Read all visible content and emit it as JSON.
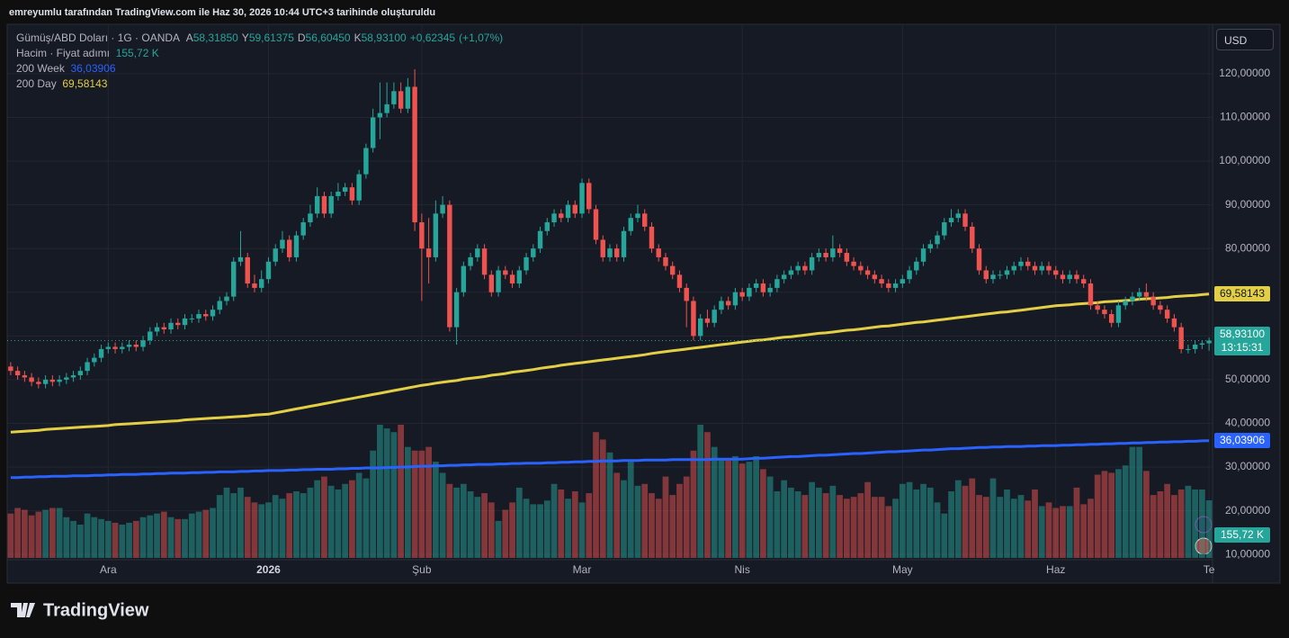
{
  "header": {
    "title": "emreyumlu tarafından TradingView.com ile Haz 30, 2026 10:44 UTC+3 tarihinde oluşturuldu"
  },
  "chart_data": {
    "type": "candlestick",
    "symbol": "Gümüş/ABD Doları · 1G · OANDA",
    "ohlc_legend": {
      "labels": [
        "A",
        "Y",
        "D",
        "K"
      ],
      "values": [
        {
          "value": 58.3185,
          "label": "58,31850"
        },
        {
          "value": 59.61375,
          "label": "59,61375"
        },
        {
          "value": 56.6045,
          "label": "56,60450"
        },
        {
          "value": 58.931,
          "label": "58,93100"
        }
      ]
    },
    "change": {
      "value": 0.62345,
      "label": "+0,62345"
    },
    "change_pct": {
      "value": 1.07,
      "label": "(+1,07%)"
    },
    "currency": "USD",
    "categories": [
      null,
      null,
      null,
      null,
      null,
      null,
      null,
      null,
      null,
      null,
      null,
      null,
      null,
      null,
      "Ara",
      null,
      null,
      null,
      null,
      null,
      null,
      null,
      null,
      null,
      null,
      null,
      null,
      null,
      null,
      null,
      null,
      null,
      null,
      null,
      null,
      null,
      null,
      "2026",
      null,
      null,
      null,
      null,
      null,
      null,
      null,
      null,
      null,
      null,
      null,
      null,
      null,
      null,
      null,
      null,
      null,
      null,
      null,
      null,
      null,
      "Şub",
      null,
      null,
      null,
      null,
      null,
      null,
      null,
      null,
      null,
      null,
      null,
      null,
      null,
      null,
      null,
      null,
      null,
      null,
      null,
      null,
      null,
      null,
      "Mar",
      null,
      null,
      null,
      null,
      null,
      null,
      null,
      null,
      null,
      null,
      null,
      null,
      null,
      null,
      null,
      null,
      null,
      null,
      null,
      null,
      null,
      null,
      "Nis",
      null,
      null,
      null,
      null,
      null,
      null,
      null,
      null,
      null,
      null,
      null,
      null,
      null,
      null,
      null,
      null,
      null,
      null,
      null,
      null,
      null,
      null,
      "May",
      null,
      null,
      null,
      null,
      null,
      null,
      null,
      null,
      null,
      null,
      null,
      null,
      null,
      null,
      null,
      null,
      null,
      null,
      null,
      null,
      null,
      "Haz",
      null,
      null,
      null,
      null,
      null,
      null,
      null,
      null,
      null,
      null,
      null,
      null,
      null,
      null,
      null,
      null,
      null,
      null,
      null,
      null,
      null,
      "Te"
    ],
    "open": [
      53,
      52,
      51,
      50.5,
      49.5,
      49,
      50,
      49.5,
      50,
      50.5,
      51,
      52,
      54,
      55,
      57,
      57.5,
      57,
      57.5,
      58,
      57.5,
      59,
      61,
      62,
      61.5,
      63,
      62.5,
      64,
      64,
      65,
      64.5,
      66,
      68,
      69,
      77,
      78,
      72,
      71,
      73,
      77,
      80,
      82,
      78,
      83,
      86,
      88,
      92,
      88,
      92,
      93,
      94,
      91,
      97,
      103,
      110,
      111,
      113,
      116,
      112,
      117,
      86,
      80,
      78,
      88,
      90,
      62,
      70,
      76,
      78,
      80,
      74,
      70,
      75,
      74,
      72,
      75,
      78,
      80,
      84,
      86,
      88,
      87,
      90,
      88,
      95,
      89,
      82,
      78,
      80,
      78,
      84,
      87,
      88,
      85,
      80,
      78,
      76,
      74,
      71,
      68,
      60,
      64,
      63,
      66,
      68,
      67,
      70,
      69,
      71,
      72,
      70,
      71,
      73,
      74,
      75,
      76,
      75,
      78,
      79,
      78,
      80,
      79,
      77,
      76,
      75,
      74,
      73,
      72,
      71,
      72,
      73,
      75,
      77,
      80,
      81,
      83,
      86,
      87,
      88,
      85,
      80,
      75,
      73,
      74,
      74,
      75,
      76,
      77,
      76,
      75,
      76,
      75,
      74,
      73,
      74,
      73,
      72,
      67,
      66,
      65,
      63,
      67,
      68,
      69,
      70,
      69,
      67,
      66,
      64,
      62,
      57,
      57,
      58,
      58.3185
    ],
    "high": [
      54,
      53,
      52,
      51.5,
      50.5,
      51,
      51,
      51,
      51.5,
      52,
      53,
      55,
      56,
      58,
      58.5,
      58.5,
      58.5,
      59,
      59,
      60,
      62,
      63,
      63,
      64,
      64,
      65,
      65,
      66,
      66,
      67,
      69,
      70,
      78,
      84,
      79,
      74,
      75,
      78,
      81,
      84,
      83,
      84,
      87,
      90,
      94,
      93,
      93,
      95,
      95,
      95,
      98,
      104,
      112,
      118,
      118,
      118,
      118,
      119,
      121,
      88,
      87,
      91,
      92,
      91,
      71,
      77,
      79,
      81,
      81,
      75,
      76,
      76,
      75,
      76,
      79,
      81,
      85,
      87,
      89,
      89,
      91,
      91,
      96,
      96,
      90,
      83,
      81,
      81,
      85,
      88,
      90,
      89,
      86,
      81,
      79,
      77,
      75,
      72,
      69,
      65,
      66,
      67,
      69,
      69,
      71,
      71,
      72,
      73,
      73,
      72,
      74,
      75,
      76,
      77,
      77,
      79,
      80,
      80,
      83,
      81,
      80,
      78,
      77,
      76,
      75,
      74,
      73,
      73,
      74,
      76,
      78,
      81,
      82,
      84,
      87,
      89,
      89,
      89,
      86,
      81,
      76,
      75,
      75,
      76,
      77,
      78,
      78,
      77,
      77,
      77,
      76,
      75,
      75,
      75,
      74,
      73,
      68,
      67,
      66,
      68,
      69,
      70,
      71,
      72,
      70,
      68,
      67,
      65,
      63,
      58,
      59,
      59,
      59.61375
    ],
    "low": [
      51,
      50,
      49.5,
      48.5,
      48,
      48,
      48.5,
      48.5,
      49,
      49.5,
      50,
      51,
      53,
      54,
      56,
      56,
      56,
      56.5,
      56.5,
      56.5,
      58,
      60,
      60.5,
      60.5,
      61.5,
      61.5,
      63,
      63,
      63.5,
      63.5,
      65,
      67,
      68,
      76,
      71,
      70,
      70,
      72,
      76,
      79,
      77,
      77,
      82,
      85,
      87,
      87,
      87,
      91,
      92,
      90,
      90,
      96,
      102,
      105,
      110,
      112,
      111,
      111,
      84,
      68,
      72,
      77,
      87,
      61,
      58,
      69,
      75,
      77,
      73,
      69,
      69,
      73,
      71,
      71,
      74,
      77,
      79,
      83,
      85,
      86,
      86,
      87,
      87,
      88,
      81,
      77,
      77,
      77,
      77,
      83,
      86,
      84,
      79,
      77,
      75,
      73,
      70,
      62,
      59,
      59,
      62,
      62,
      65,
      66,
      66,
      68,
      68,
      70,
      69,
      69,
      70,
      72,
      73,
      74,
      74,
      74,
      77,
      77,
      77,
      78,
      76,
      75,
      74,
      73,
      72,
      71,
      70,
      70,
      71,
      72,
      74,
      76,
      79,
      80,
      82,
      85,
      86,
      84,
      79,
      74,
      72,
      72,
      73,
      73,
      74,
      75,
      75,
      74,
      74,
      74,
      73,
      72,
      72,
      72,
      71,
      66,
      65,
      64,
      62,
      62,
      66,
      67,
      68,
      68,
      66,
      65,
      63,
      61,
      56,
      56,
      56,
      57,
      56.6045
    ],
    "close": [
      52,
      51,
      50.5,
      49.5,
      49,
      50,
      49.5,
      50,
      50.5,
      51,
      52,
      54,
      55,
      57,
      57.5,
      57,
      57.5,
      58,
      57.5,
      59,
      61,
      62,
      61.5,
      63,
      62.5,
      64,
      64,
      65,
      64.5,
      66,
      68,
      69,
      77,
      78,
      72,
      71,
      73,
      77,
      80,
      82,
      78,
      83,
      86,
      88,
      92,
      88,
      92,
      93,
      94,
      91,
      97,
      103,
      110,
      111,
      113,
      116,
      112,
      117,
      86,
      80,
      78,
      88,
      90,
      62,
      70,
      76,
      78,
      80,
      74,
      70,
      75,
      74,
      72,
      75,
      78,
      80,
      84,
      86,
      88,
      87,
      90,
      88,
      95,
      89,
      82,
      78,
      80,
      78,
      84,
      87,
      88,
      85,
      80,
      78,
      76,
      74,
      71,
      68,
      60,
      64,
      63,
      66,
      68,
      67,
      70,
      69,
      71,
      72,
      70,
      71,
      73,
      74,
      75,
      76,
      75,
      78,
      79,
      78,
      80,
      79,
      77,
      76,
      75,
      74,
      73,
      72,
      71,
      72,
      73,
      75,
      77,
      80,
      81,
      83,
      86,
      87,
      88,
      85,
      80,
      75,
      73,
      74,
      74,
      75,
      76,
      77,
      76,
      75,
      76,
      75,
      74,
      73,
      74,
      73,
      72,
      67,
      66,
      65,
      63,
      67,
      68,
      69,
      70,
      69,
      67,
      66,
      64,
      62,
      57,
      57,
      58,
      58.3,
      58.931
    ],
    "last_price_label": "58,93100",
    "countdown": "13:15:31",
    "up_color": "#26a69a",
    "down_color": "#ef5350",
    "volume": {
      "name": "Hacim · Fiyat adımı",
      "last_value_label": "155,72 K",
      "values": [
        120,
        135,
        130,
        115,
        125,
        130,
        135,
        135,
        110,
        100,
        90,
        120,
        110,
        105,
        100,
        95,
        90,
        95,
        100,
        110,
        115,
        120,
        125,
        110,
        105,
        105,
        120,
        125,
        130,
        135,
        170,
        190,
        175,
        190,
        165,
        150,
        145,
        150,
        170,
        160,
        175,
        180,
        175,
        190,
        210,
        220,
        195,
        185,
        200,
        210,
        230,
        215,
        290,
        360,
        350,
        340,
        360,
        300,
        290,
        290,
        300,
        260,
        230,
        200,
        190,
        200,
        180,
        165,
        175,
        150,
        100,
        130,
        150,
        190,
        160,
        145,
        145,
        155,
        200,
        185,
        160,
        180,
        150,
        175,
        340,
        320,
        285,
        230,
        210,
        260,
        195,
        200,
        175,
        160,
        220,
        170,
        200,
        220,
        290,
        360,
        340,
        300,
        265,
        270,
        275,
        255,
        260,
        275,
        240,
        220,
        180,
        210,
        190,
        180,
        170,
        205,
        190,
        175,
        195,
        170,
        160,
        165,
        175,
        205,
        165,
        165,
        140,
        160,
        200,
        205,
        185,
        200,
        190,
        150,
        120,
        180,
        210,
        195,
        215,
        170,
        165,
        215,
        165,
        185,
        160,
        170,
        155,
        185,
        140,
        150,
        135,
        140,
        140,
        190,
        145,
        160,
        225,
        235,
        230,
        240,
        250,
        300,
        300,
        235,
        170,
        180,
        200,
        170,
        185,
        195,
        185,
        185,
        155.72
      ]
    },
    "series": [
      {
        "name": "200 Week",
        "color": "#2962ff",
        "last_value_label": "36,03906",
        "values": [
          27.6,
          27.6,
          27.7,
          27.7,
          27.8,
          27.8,
          27.9,
          27.9,
          27.9,
          28.0,
          28.0,
          28.0,
          28.1,
          28.1,
          28.2,
          28.2,
          28.3,
          28.3,
          28.3,
          28.4,
          28.4,
          28.5,
          28.5,
          28.6,
          28.6,
          28.6,
          28.7,
          28.7,
          28.8,
          28.8,
          28.9,
          28.9,
          28.9,
          29.0,
          29.0,
          29.1,
          29.1,
          29.2,
          29.2,
          29.2,
          29.3,
          29.3,
          29.4,
          29.4,
          29.5,
          29.5,
          29.5,
          29.6,
          29.6,
          29.7,
          29.7,
          29.8,
          29.8,
          29.8,
          29.9,
          29.9,
          30.0,
          30.0,
          30.1,
          30.2,
          30.2,
          30.3,
          30.3,
          30.4,
          30.4,
          30.5,
          30.5,
          30.6,
          30.6,
          30.6,
          30.7,
          30.7,
          30.8,
          30.8,
          30.9,
          30.9,
          30.9,
          31.0,
          31.0,
          31.1,
          31.1,
          31.2,
          31.2,
          31.3,
          31.3,
          31.4,
          31.4,
          31.4,
          31.5,
          31.5,
          31.5,
          31.6,
          31.6,
          31.6,
          31.6,
          31.7,
          31.7,
          31.7,
          31.7,
          31.7,
          31.7,
          31.8,
          31.8,
          31.8,
          31.8,
          31.8,
          31.9,
          32.0,
          32.0,
          32.1,
          32.2,
          32.3,
          32.4,
          32.4,
          32.5,
          32.6,
          32.7,
          32.7,
          32.8,
          32.9,
          33.0,
          33.1,
          33.1,
          33.2,
          33.3,
          33.4,
          33.5,
          33.5,
          33.6,
          33.7,
          33.8,
          33.9,
          33.9,
          34.0,
          34.1,
          34.2,
          34.2,
          34.3,
          34.4,
          34.5,
          34.5,
          34.6,
          34.6,
          34.7,
          34.7,
          34.7,
          34.8,
          34.8,
          34.9,
          34.9,
          34.9,
          35.0,
          35.0,
          35.1,
          35.1,
          35.2,
          35.2,
          35.3,
          35.3,
          35.4,
          35.4,
          35.5,
          35.5,
          35.6,
          35.6,
          35.7,
          35.7,
          35.8,
          35.8,
          35.9,
          35.9,
          36.0,
          36.03906
        ]
      },
      {
        "name": "200 Day",
        "color": "#e3cf45",
        "last_value_label": "69,58143",
        "values": [
          38.0,
          38.1,
          38.2,
          38.3,
          38.4,
          38.6,
          38.7,
          38.8,
          38.9,
          39.0,
          39.1,
          39.2,
          39.3,
          39.4,
          39.5,
          39.7,
          39.8,
          39.9,
          40.0,
          40.1,
          40.2,
          40.3,
          40.4,
          40.5,
          40.6,
          40.8,
          40.9,
          41.0,
          41.1,
          41.2,
          41.3,
          41.4,
          41.5,
          41.6,
          41.7,
          41.9,
          42.0,
          42.1,
          42.4,
          42.7,
          43.0,
          43.3,
          43.6,
          43.9,
          44.2,
          44.5,
          44.8,
          45.1,
          45.4,
          45.7,
          46.0,
          46.3,
          46.6,
          46.9,
          47.2,
          47.5,
          47.8,
          48.1,
          48.4,
          48.7,
          48.9,
          49.2,
          49.4,
          49.6,
          49.8,
          50.1,
          50.3,
          50.5,
          50.7,
          51.0,
          51.2,
          51.4,
          51.7,
          51.9,
          52.1,
          52.3,
          52.6,
          52.8,
          53.0,
          53.3,
          53.5,
          53.7,
          53.9,
          54.1,
          54.3,
          54.5,
          54.7,
          54.9,
          55.1,
          55.3,
          55.5,
          55.7,
          56.0,
          56.2,
          56.4,
          56.6,
          56.8,
          57.0,
          57.2,
          57.4,
          57.6,
          57.8,
          58.0,
          58.2,
          58.4,
          58.6,
          58.8,
          59.0,
          59.1,
          59.3,
          59.5,
          59.7,
          59.8,
          60.0,
          60.2,
          60.4,
          60.6,
          60.7,
          60.9,
          61.1,
          61.3,
          61.4,
          61.6,
          61.8,
          62.0,
          62.2,
          62.3,
          62.5,
          62.7,
          62.9,
          63.1,
          63.2,
          63.4,
          63.6,
          63.8,
          64.0,
          64.2,
          64.4,
          64.6,
          64.8,
          65.0,
          65.2,
          65.4,
          65.5,
          65.7,
          65.9,
          66.1,
          66.3,
          66.5,
          66.7,
          66.9,
          67.0,
          67.1,
          67.3,
          67.4,
          67.5,
          67.6,
          67.8,
          67.9,
          68.0,
          68.1,
          68.2,
          68.4,
          68.5,
          68.6,
          68.7,
          68.8,
          69.0,
          69.1,
          69.2,
          69.3,
          69.45,
          69.58143
        ]
      }
    ],
    "ylim": [
      8.8,
      131.1
    ],
    "yticks": [
      {
        "value": 10,
        "label": "10,00000"
      },
      {
        "value": 20,
        "label": "20,00000"
      },
      {
        "value": 30,
        "label": "30,00000"
      },
      {
        "value": 40,
        "label": "40,00000"
      },
      {
        "value": 50,
        "label": "50,00000"
      },
      {
        "value": 60,
        "label": "60,00000"
      },
      {
        "value": 70,
        "label": "70,00000"
      },
      {
        "value": 80,
        "label": "80,00000"
      },
      {
        "value": 90,
        "label": "90,00000"
      },
      {
        "value": 100,
        "label": "100,00000"
      },
      {
        "value": 110,
        "label": "110,00000"
      },
      {
        "value": 120,
        "label": "120,00000"
      }
    ],
    "grid": true
  },
  "footer": {
    "logo": "TradingView"
  }
}
